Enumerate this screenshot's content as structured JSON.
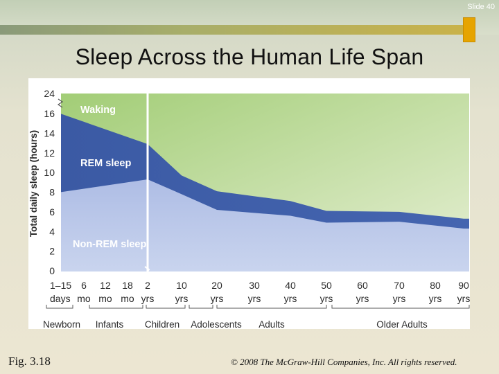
{
  "slide": {
    "number_label": "Slide 40",
    "title": "Sleep Across the Human Life Span"
  },
  "footer": {
    "figure": "Fig. 3.18",
    "copyright": "© 2008 The McGraw-Hill Companies, Inc. All rights reserved."
  },
  "colors": {
    "waking": "#a9d17e",
    "waking_light": "#e3edd0",
    "rem": "#3e5fa8",
    "nonrem": "#a9b9e3",
    "nonrem_light": "#d3dcf1"
  },
  "chart_data": {
    "type": "area",
    "ylabel": "Total daily sleep (hours)",
    "yticks": [
      "0",
      "2",
      "4",
      "6",
      "8",
      "10",
      "12",
      "14",
      "16",
      "24"
    ],
    "series_labels": [
      "Waking",
      "REM sleep",
      "Non-REM sleep"
    ],
    "x_ticks": [
      {
        "num": "1–15",
        "unit": "days"
      },
      {
        "num": "6",
        "unit": "mo"
      },
      {
        "num": "12",
        "unit": "mo"
      },
      {
        "num": "18",
        "unit": "mo"
      },
      {
        "num": "2",
        "unit": "yrs"
      },
      {
        "num": "10",
        "unit": "yrs"
      },
      {
        "num": "20",
        "unit": "yrs"
      },
      {
        "num": "30",
        "unit": "yrs"
      },
      {
        "num": "40",
        "unit": "yrs"
      },
      {
        "num": "50",
        "unit": "yrs"
      },
      {
        "num": "60",
        "unit": "yrs"
      },
      {
        "num": "70",
        "unit": "yrs"
      },
      {
        "num": "80",
        "unit": "yrs"
      },
      {
        "num": "90",
        "unit": "yrs"
      }
    ],
    "groups": [
      "Newborn",
      "Infants",
      "Children",
      "Adolescents",
      "Adults",
      "Older Adults"
    ],
    "total_sleep": [
      {
        "age": "1–15 days",
        "hours": 16
      },
      {
        "age": "2 yrs",
        "hours": 12.9
      },
      {
        "age": "10 yrs",
        "hours": 9.7
      },
      {
        "age": "20 yrs",
        "hours": 8.1
      },
      {
        "age": "40 yrs",
        "hours": 7.1
      },
      {
        "age": "50 yrs",
        "hours": 6.1
      },
      {
        "age": "70 yrs",
        "hours": 6.0
      },
      {
        "age": "90 yrs",
        "hours": 5.3
      }
    ],
    "nonrem_sleep": [
      {
        "age": "1–15 days",
        "hours": 8.0
      },
      {
        "age": "2 yrs",
        "hours": 9.3
      },
      {
        "age": "10 yrs",
        "hours": 7.8
      },
      {
        "age": "20 yrs",
        "hours": 6.2
      },
      {
        "age": "40 yrs",
        "hours": 5.6
      },
      {
        "age": "50 yrs",
        "hours": 4.9
      },
      {
        "age": "70 yrs",
        "hours": 5.0
      },
      {
        "age": "90 yrs",
        "hours": 4.3
      }
    ]
  }
}
